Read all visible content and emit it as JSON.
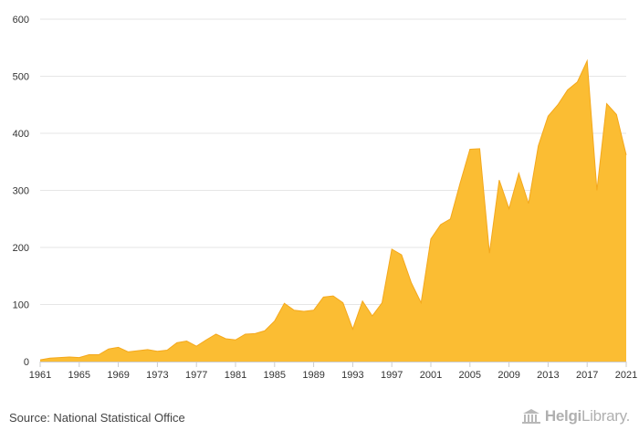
{
  "chart_data": {
    "type": "area",
    "x": [
      1961,
      1962,
      1963,
      1964,
      1965,
      1966,
      1967,
      1968,
      1969,
      1970,
      1971,
      1972,
      1973,
      1974,
      1975,
      1976,
      1977,
      1978,
      1979,
      1980,
      1981,
      1982,
      1983,
      1984,
      1985,
      1986,
      1987,
      1988,
      1989,
      1990,
      1991,
      1992,
      1993,
      1994,
      1995,
      1996,
      1997,
      1998,
      1999,
      2000,
      2001,
      2002,
      2003,
      2004,
      2005,
      2006,
      2007,
      2008,
      2009,
      2010,
      2011,
      2012,
      2013,
      2014,
      2015,
      2016,
      2017,
      2018,
      2019,
      2020,
      2021
    ],
    "values": [
      3,
      6,
      7,
      8,
      7,
      12,
      12,
      22,
      25,
      17,
      19,
      21,
      18,
      20,
      33,
      36,
      27,
      38,
      48,
      40,
      38,
      48,
      49,
      54,
      71,
      102,
      90,
      88,
      90,
      113,
      115,
      103,
      57,
      106,
      80,
      103,
      197,
      187,
      138,
      103,
      215,
      240,
      250,
      313,
      372,
      373,
      190,
      318,
      268,
      330,
      277,
      378,
      430,
      450,
      476,
      490,
      527,
      300,
      452,
      433,
      362
    ],
    "xticks": [
      "1961",
      "1965",
      "1969",
      "1973",
      "1977",
      "1981",
      "1985",
      "1989",
      "1993",
      "1997",
      "2001",
      "2005",
      "2009",
      "2013",
      "2017",
      "2021"
    ],
    "yticks": [
      "0",
      "100",
      "200",
      "300",
      "400",
      "500",
      "600"
    ],
    "ylim": [
      0,
      600
    ],
    "xlim": [
      1961,
      2021
    ],
    "grid": true,
    "color": "#fbbd33",
    "line_color": "#f4a81c"
  },
  "footer": {
    "source": "Source: National Statistical Office",
    "logo_text_bold": "Helgi",
    "logo_text": "Library."
  }
}
